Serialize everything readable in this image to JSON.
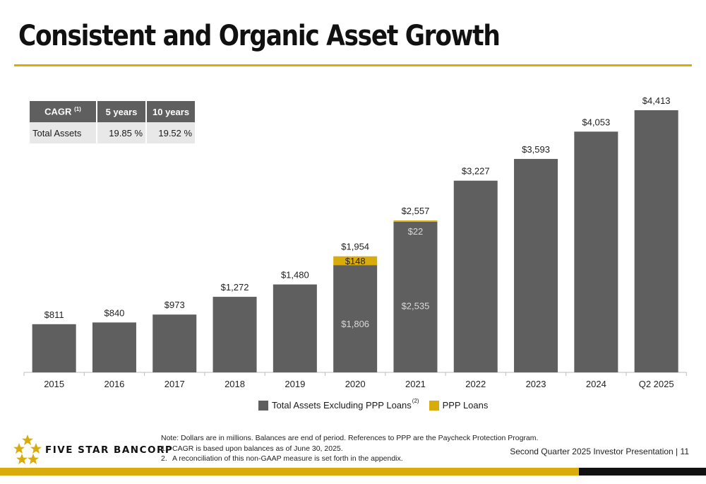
{
  "slide": {
    "title": "Consistent and Organic Asset Growth",
    "company": "FIVE STAR BANCORP",
    "footer": "Second Quarter 2025 Investor Presentation |",
    "page_number": "11",
    "colors": {
      "gold": "#d9ac0b",
      "bar_gray": "#5f5f5f",
      "dark": "#111111"
    }
  },
  "cagr_table": {
    "header": {
      "label": "CAGR",
      "label_sup": "(1)",
      "col1": "5 years",
      "col2": "10 years"
    },
    "row": {
      "label": "Total Assets",
      "five_year": "19.85 %",
      "ten_year": "19.52 %"
    }
  },
  "legend": {
    "item1": "Total Assets Excluding PPP Loans",
    "item1_sup": "(2)",
    "item2": "PPP Loans"
  },
  "notes": {
    "line0": "Note: Dollars are in millions. Balances are end of period. References to PPP are the Paycheck Protection Program.",
    "items": [
      {
        "num": "1.",
        "text": "CAGR is based upon balances as of June 30, 2025."
      },
      {
        "num": "2.",
        "text": "A reconciliation of this non-GAAP measure is set forth in the appendix."
      }
    ]
  },
  "chart_data": {
    "type": "bar",
    "stacked": true,
    "categories": [
      "2015",
      "2016",
      "2017",
      "2018",
      "2019",
      "2020",
      "2021",
      "2022",
      "2023",
      "2024",
      "Q2 2025"
    ],
    "series": [
      {
        "name": "Total Assets Excluding PPP Loans",
        "color": "#5f5f5f",
        "values": [
          811,
          840,
          973,
          1272,
          1480,
          1806,
          2535,
          3227,
          3593,
          4053,
          4413
        ]
      },
      {
        "name": "PPP Loans",
        "color": "#d9ac0b",
        "values": [
          0,
          0,
          0,
          0,
          0,
          148,
          22,
          0,
          0,
          0,
          0
        ]
      }
    ],
    "total_labels": [
      "$811",
      "$840",
      "$973",
      "$1,272",
      "$1,480",
      "$1,954",
      "$2,557",
      "$3,227",
      "$3,593",
      "$4,053",
      "$4,413"
    ],
    "segment_labels": [
      {
        "category": "2020",
        "series": "Total Assets Excluding PPP Loans",
        "text": "$1,806"
      },
      {
        "category": "2020",
        "series": "PPP Loans",
        "text": "$148"
      },
      {
        "category": "2021",
        "series": "Total Assets Excluding PPP Loans",
        "text": "$2,535"
      },
      {
        "category": "2021",
        "series": "PPP Loans",
        "text": "$22"
      }
    ],
    "ylim": [
      0,
      4413
    ],
    "grid": false,
    "legend_position": "bottom"
  }
}
